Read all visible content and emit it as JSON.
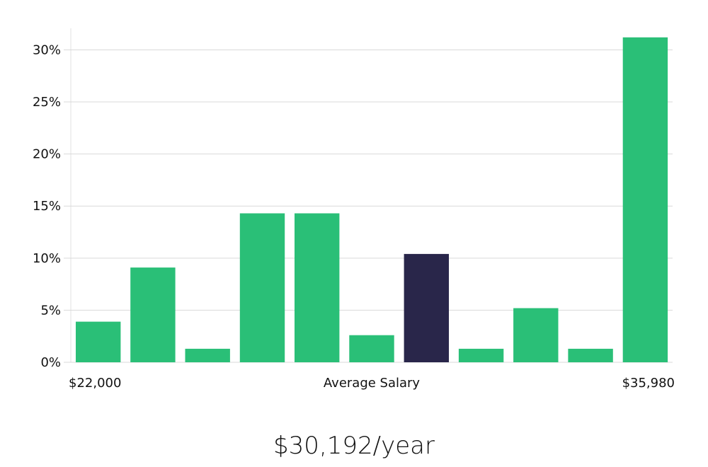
{
  "chart_data": {
    "type": "bar",
    "values": [
      3.9,
      9.1,
      1.3,
      14.3,
      14.3,
      2.6,
      10.4,
      1.3,
      5.2,
      1.3,
      31.2
    ],
    "highlight_index": 6,
    "ylim": [
      0,
      32
    ],
    "yticks": [
      0,
      5,
      10,
      15,
      20,
      25,
      30
    ],
    "ytick_suffix": "%",
    "grid": true,
    "x_labels": {
      "left": "$22,000",
      "center": "Average Salary",
      "right": "$35,980"
    },
    "colors": {
      "bar": "#2abf77",
      "highlight": "#29264a",
      "grid": "#d9d9d9"
    }
  },
  "headline": "$30,192/year"
}
